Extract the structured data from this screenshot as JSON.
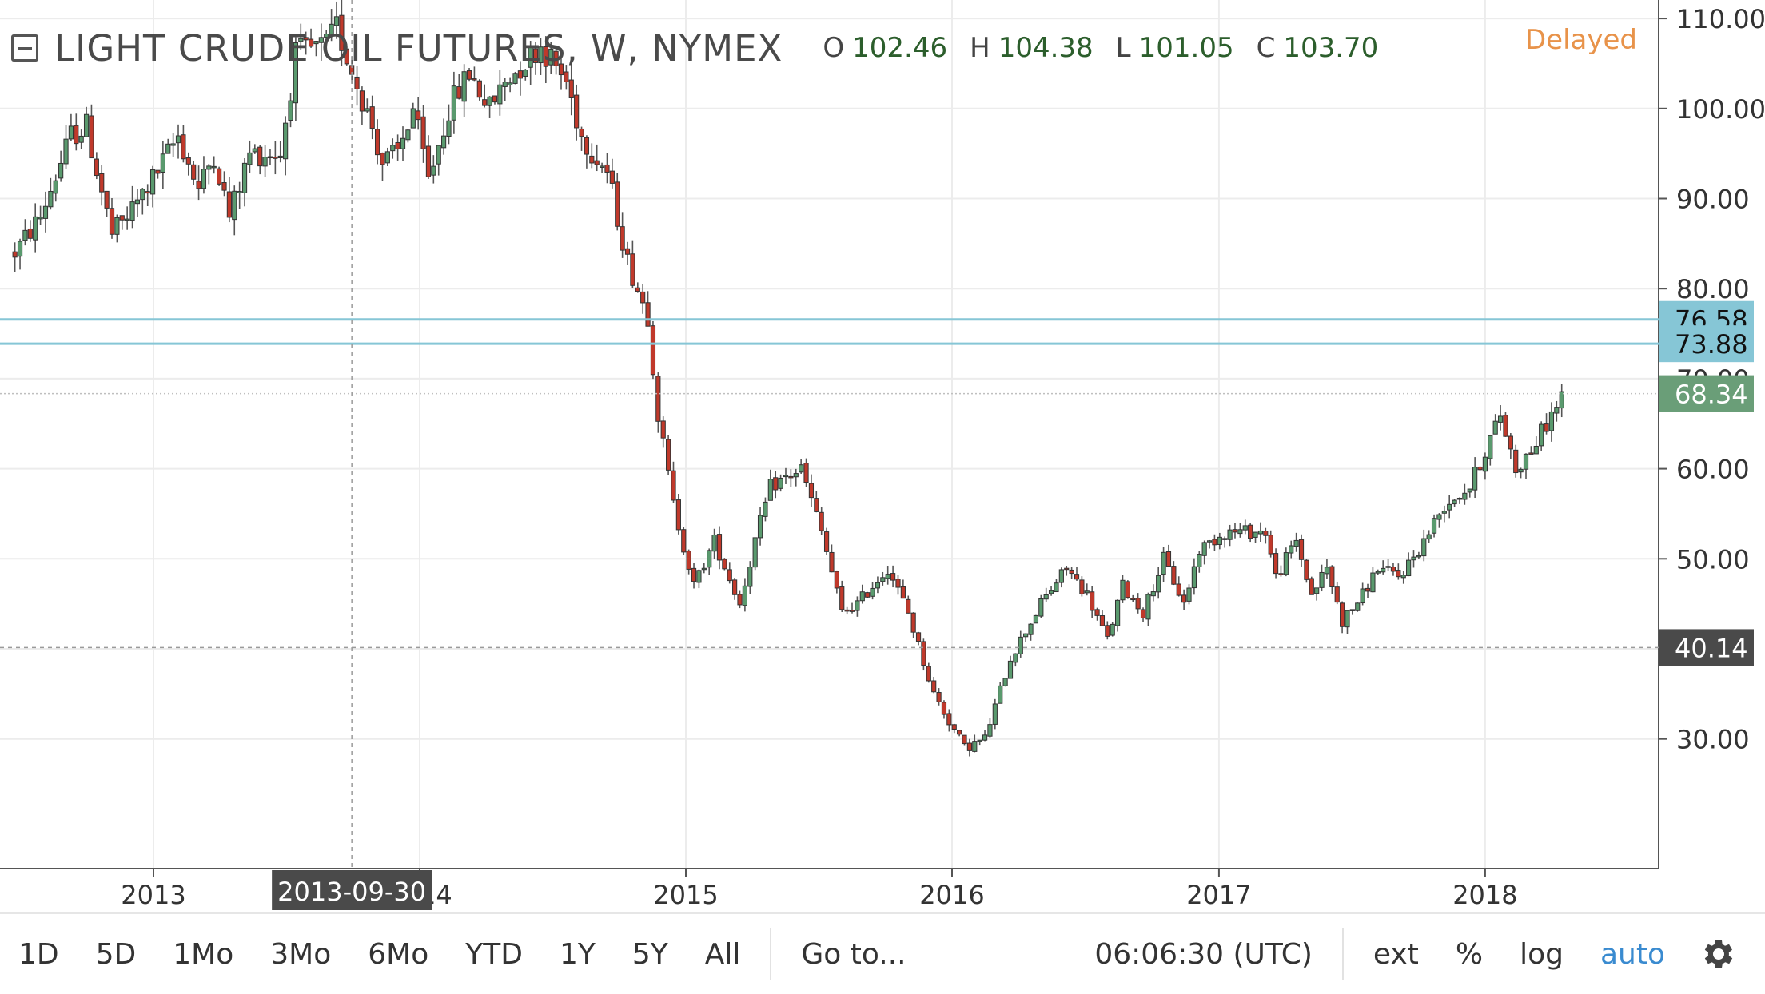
{
  "legend": {
    "title": "LIGHT CRUDE OIL FUTURES, W, NYMEX",
    "open_label": "O",
    "open_value": "102.46",
    "high_label": "H",
    "high_value": "104.38",
    "low_label": "L",
    "low_value": "101.05",
    "close_label": "C",
    "close_value": "103.70",
    "delayed": "Delayed"
  },
  "toolbar": {
    "ranges": [
      "1D",
      "5D",
      "1Mo",
      "3Mo",
      "6Mo",
      "YTD",
      "1Y",
      "5Y",
      "All"
    ],
    "goto": "Go to...",
    "time": "06:06:30 (UTC)",
    "ext": "ext",
    "percent": "%",
    "log": "log",
    "auto": "auto",
    "settings_icon": "gear-icon"
  },
  "colors": {
    "up": "#5a9a6e",
    "down": "#c0392b",
    "level_line": "#86c6d6",
    "last_price_badge": "#6a9e78",
    "crosshair_badge": "#4a4a4a",
    "delayed": "#e8934a",
    "auto": "#3a8bd0"
  },
  "chart_data": {
    "type": "candlestick",
    "title": "LIGHT CRUDE OIL FUTURES, W, NYMEX",
    "interval": "weekly",
    "x_axis": {
      "ticks": [
        "2013",
        "2014",
        "2015",
        "2016",
        "2017",
        "2018"
      ]
    },
    "y_axis": {
      "ticks": [
        30,
        40,
        50,
        60,
        70,
        80,
        90,
        100,
        110
      ],
      "tick_labels": [
        "30.00",
        "40.00",
        "50.00",
        "60.00",
        "70.00",
        "80.00",
        "90.00",
        "100.00",
        "110.00"
      ],
      "range": [
        21,
        116
      ],
      "position": "right"
    },
    "horizontal_lines": [
      76.58,
      73.88
    ],
    "horizontal_line_labels": [
      "76.58",
      "73.88"
    ],
    "last_price": 68.34,
    "last_price_label": "68.34",
    "crosshair_price": 40.14,
    "crosshair_price_label": "40.14",
    "crosshair_date": "2013-09-30",
    "anchors": [
      [
        "2012-06-25",
        84
      ],
      [
        "2012-07-30",
        88
      ],
      [
        "2012-09-10",
        97
      ],
      [
        "2012-10-01",
        98
      ],
      [
        "2012-11-05",
        86
      ],
      [
        "2012-11-26",
        88
      ],
      [
        "2013-01-07",
        93
      ],
      [
        "2013-02-04",
        97
      ],
      [
        "2013-03-04",
        91
      ],
      [
        "2013-03-25",
        95
      ],
      [
        "2013-04-15",
        88
      ],
      [
        "2013-05-13",
        95
      ],
      [
        "2013-06-24",
        95
      ],
      [
        "2013-07-15",
        106
      ],
      [
        "2013-08-26",
        107
      ],
      [
        "2013-09-09",
        109
      ],
      [
        "2013-10-28",
        98
      ],
      [
        "2013-11-11",
        94
      ],
      [
        "2013-12-02",
        95
      ],
      [
        "2013-12-23",
        100
      ],
      [
        "2014-01-13",
        92
      ],
      [
        "2014-02-10",
        100
      ],
      [
        "2014-03-10",
        104
      ],
      [
        "2014-04-07",
        100
      ],
      [
        "2014-04-28",
        103
      ],
      [
        "2014-06-16",
        107
      ],
      [
        "2014-07-21",
        103
      ],
      [
        "2014-08-11",
        97
      ],
      [
        "2014-09-15",
        93
      ],
      [
        "2014-10-13",
        83
      ],
      [
        "2014-11-10",
        77
      ],
      [
        "2014-11-24",
        66
      ],
      [
        "2014-12-15",
        56
      ],
      [
        "2015-01-12",
        47
      ],
      [
        "2015-02-09",
        52
      ],
      [
        "2015-03-16",
        45
      ],
      [
        "2015-04-06",
        52
      ],
      [
        "2015-04-27",
        58
      ],
      [
        "2015-06-08",
        60
      ],
      [
        "2015-07-06",
        53
      ],
      [
        "2015-08-03",
        44
      ],
      [
        "2015-08-24",
        45
      ],
      [
        "2015-10-05",
        49
      ],
      [
        "2015-11-02",
        44
      ],
      [
        "2015-12-07",
        35
      ],
      [
        "2016-01-18",
        29
      ],
      [
        "2016-02-15",
        30
      ],
      [
        "2016-03-21",
        39
      ],
      [
        "2016-05-02",
        45
      ],
      [
        "2016-06-06",
        49
      ],
      [
        "2016-07-04",
        46
      ],
      [
        "2016-08-01",
        41
      ],
      [
        "2016-08-22",
        47
      ],
      [
        "2016-09-19",
        44
      ],
      [
        "2016-10-17",
        50
      ],
      [
        "2016-11-14",
        45
      ],
      [
        "2016-12-05",
        51
      ],
      [
        "2017-01-09",
        53
      ],
      [
        "2017-02-13",
        53
      ],
      [
        "2017-03-06",
        53
      ],
      [
        "2017-03-20",
        48
      ],
      [
        "2017-04-17",
        52
      ],
      [
        "2017-05-08",
        46
      ],
      [
        "2017-05-29",
        49
      ],
      [
        "2017-06-19",
        43
      ],
      [
        "2017-07-17",
        46
      ],
      [
        "2017-08-07",
        49
      ],
      [
        "2017-09-04",
        48
      ],
      [
        "2017-10-02",
        51
      ],
      [
        "2017-11-06",
        56
      ],
      [
        "2017-12-11",
        58
      ],
      [
        "2018-01-22",
        66
      ],
      [
        "2018-02-12",
        60
      ],
      [
        "2018-03-05",
        62
      ],
      [
        "2018-03-26",
        65
      ],
      [
        "2018-04-16",
        68
      ]
    ]
  }
}
